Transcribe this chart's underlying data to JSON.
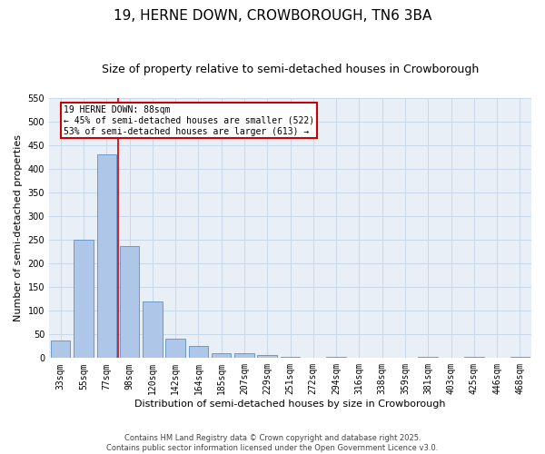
{
  "title": "19, HERNE DOWN, CROWBOROUGH, TN6 3BA",
  "subtitle": "Size of property relative to semi-detached houses in Crowborough",
  "xlabel": "Distribution of semi-detached houses by size in Crowborough",
  "ylabel": "Number of semi-detached properties",
  "categories": [
    "33sqm",
    "55sqm",
    "77sqm",
    "98sqm",
    "120sqm",
    "142sqm",
    "164sqm",
    "185sqm",
    "207sqm",
    "229sqm",
    "251sqm",
    "272sqm",
    "294sqm",
    "316sqm",
    "338sqm",
    "359sqm",
    "381sqm",
    "403sqm",
    "425sqm",
    "446sqm",
    "468sqm"
  ],
  "values": [
    38,
    250,
    430,
    237,
    120,
    40,
    25,
    10,
    10,
    7,
    3,
    0,
    3,
    0,
    0,
    0,
    3,
    0,
    3,
    0,
    3
  ],
  "bar_color": "#aec6e8",
  "bar_edge_color": "#5b8fc9",
  "grid_color": "#c8d8e8",
  "background_color": "#e8eff7",
  "vline_color": "#cc0000",
  "vline_pos": 2.5,
  "annotation_title": "19 HERNE DOWN: 88sqm",
  "annotation_line1": "← 45% of semi-detached houses are smaller (522)",
  "annotation_line2": "53% of semi-detached houses are larger (613) →",
  "annotation_box_color": "#cc0000",
  "ylim": [
    0,
    550
  ],
  "yticks": [
    0,
    50,
    100,
    150,
    200,
    250,
    300,
    350,
    400,
    450,
    500,
    550
  ],
  "footer_line1": "Contains HM Land Registry data © Crown copyright and database right 2025.",
  "footer_line2": "Contains public sector information licensed under the Open Government Licence v3.0.",
  "title_fontsize": 11,
  "subtitle_fontsize": 9,
  "axis_label_fontsize": 8,
  "tick_fontsize": 7,
  "annotation_fontsize": 7,
  "footer_fontsize": 6
}
